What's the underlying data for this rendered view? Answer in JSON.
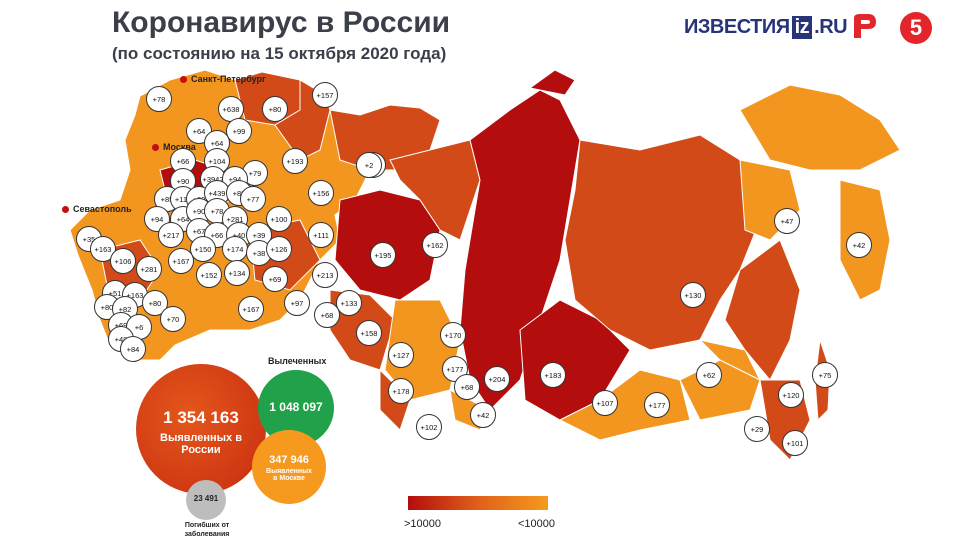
{
  "header": {
    "title": "Коронавирус в России",
    "subtitle": "(по состоянию на 15 октября 2020 года)"
  },
  "logos": {
    "izvestia_text": "ИЗВЕСТИЯ",
    "iz_box": "iz",
    "iz_suffix": ".RU",
    "ch5": "5"
  },
  "cities": {
    "spb": "Санкт-Петербург",
    "moscow": "Москва",
    "sevastopol": "Севастополь"
  },
  "badges": [
    {
      "v": "+78"
    },
    {
      "v": "+638"
    },
    {
      "v": "+80"
    },
    {
      "v": "+157"
    },
    {
      "v": "+64"
    },
    {
      "v": "+99"
    },
    {
      "v": "+64"
    },
    {
      "v": "+66"
    },
    {
      "v": "+104"
    },
    {
      "v": "+193"
    },
    {
      "v": "+79"
    },
    {
      "v": "+90"
    },
    {
      "v": "+3942"
    },
    {
      "v": "+94"
    },
    {
      "v": "+2"
    },
    {
      "v": "+85"
    },
    {
      "v": "+114"
    },
    {
      "v": "+69"
    },
    {
      "v": "+439"
    },
    {
      "v": "+88"
    },
    {
      "v": "+77"
    },
    {
      "v": "+156"
    },
    {
      "v": "+94"
    },
    {
      "v": "+64"
    },
    {
      "v": "+90"
    },
    {
      "v": "+78"
    },
    {
      "v": "+281"
    },
    {
      "v": "+100"
    },
    {
      "v": "+35"
    },
    {
      "v": "+217"
    },
    {
      "v": "+67"
    },
    {
      "v": "+66"
    },
    {
      "v": "+40"
    },
    {
      "v": "+39"
    },
    {
      "v": "+163"
    },
    {
      "v": "+150"
    },
    {
      "v": "+174"
    },
    {
      "v": "+38"
    },
    {
      "v": "+126"
    },
    {
      "v": "+111"
    },
    {
      "v": "+106"
    },
    {
      "v": "+281"
    },
    {
      "v": "+167"
    },
    {
      "v": "+152"
    },
    {
      "v": "+134"
    },
    {
      "v": "+69"
    },
    {
      "v": "+213"
    },
    {
      "v": "+51"
    },
    {
      "v": "+163"
    },
    {
      "v": "+97"
    },
    {
      "v": "+133"
    },
    {
      "v": "+80"
    },
    {
      "v": "+82"
    },
    {
      "v": "+80"
    },
    {
      "v": "+167"
    },
    {
      "v": "+68"
    },
    {
      "v": "+69"
    },
    {
      "v": "+6"
    },
    {
      "v": "+70"
    },
    {
      "v": "+158"
    },
    {
      "v": "+48"
    },
    {
      "v": "+84"
    },
    {
      "v": "+195"
    },
    {
      "v": "+162"
    },
    {
      "v": "+2"
    },
    {
      "v": "+47"
    },
    {
      "v": "+42"
    },
    {
      "v": "+130"
    },
    {
      "v": "+170"
    },
    {
      "v": "+127"
    },
    {
      "v": "+177"
    },
    {
      "v": "+204"
    },
    {
      "v": "+183"
    },
    {
      "v": "+62"
    },
    {
      "v": "+75"
    },
    {
      "v": "+178"
    },
    {
      "v": "+68"
    },
    {
      "v": "+107"
    },
    {
      "v": "+177"
    },
    {
      "v": "+120"
    },
    {
      "v": "+42"
    },
    {
      "v": "+102"
    },
    {
      "v": "+29"
    },
    {
      "v": "+101"
    }
  ],
  "stats": {
    "total_num": "1 354 163",
    "total_lbl": "Выявленных в России",
    "recovered_title": "Вылеченных",
    "recovered_num": "1 048 097",
    "moscow_num": "347 946",
    "moscow_lbl": "Выявленных в Москве",
    "deaths_num": "23 491",
    "deaths_lbl": "Погибших от заболевания"
  },
  "legend": {
    "left": ">10000",
    "right": "<10000"
  },
  "colors": {
    "dark_red": "#b30d0d",
    "red_orange": "#d24a17",
    "orange": "#f3961f",
    "recovered_green": "#21a14a"
  }
}
